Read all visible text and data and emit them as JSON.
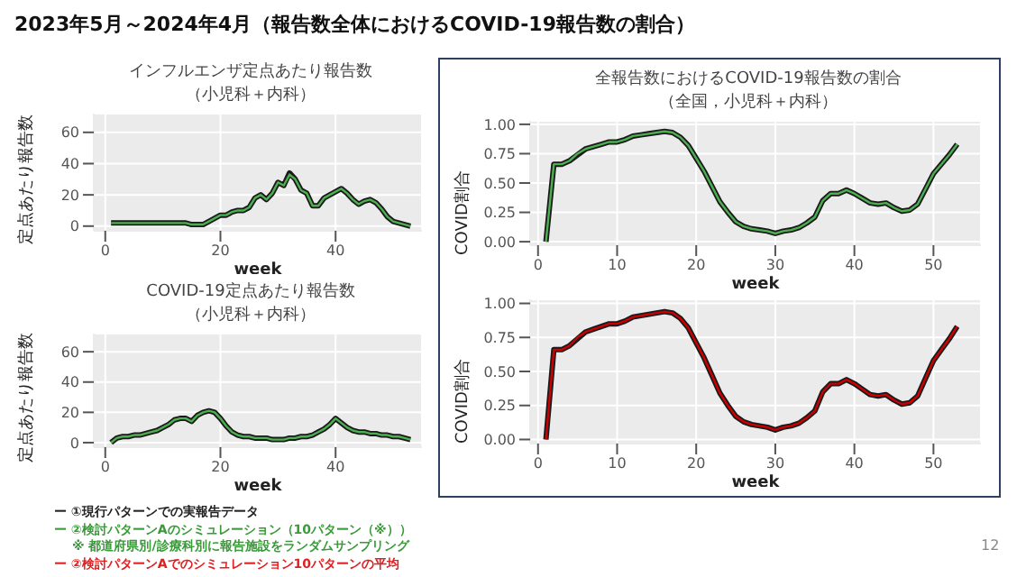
{
  "chart_data": [
    {
      "type": "line",
      "title": "インフルエンザ定点あたり報告数",
      "subtitle": "（小児科＋内科）",
      "xlabel": "week",
      "ylabel": "定点あたり報告数",
      "annotations": [
        "2023年5月～2024年4月（報告数全体におけるCOVID-19報告数の割合）",
        "ー ①現行パターンでの実報告データ",
        "ー ②検討パターンAのシミュレーション（10パターン（※））",
        "※ 都道府県別/診療科別に報告施設をランダムサンプリング",
        "ー ②検討パターンAでのシミュレーション10パターンの平均",
        "12"
      ],
      "x": [
        1,
        2,
        3,
        4,
        5,
        6,
        7,
        8,
        9,
        10,
        11,
        12,
        13,
        14,
        15,
        16,
        17,
        18,
        19,
        20,
        21,
        22,
        23,
        24,
        25,
        26,
        27,
        28,
        29,
        30,
        31,
        32,
        33,
        34,
        35,
        36,
        37,
        38,
        39,
        40,
        41,
        42,
        43,
        44,
        45,
        46,
        47,
        48,
        49,
        50,
        51,
        52,
        53
      ],
      "xlim": [
        -2,
        55
      ],
      "xticks": [
        0,
        20,
        40
      ],
      "ylim": [
        -3,
        72
      ],
      "yticks": [
        0,
        20,
        40,
        60
      ],
      "grid": true,
      "series": [
        {
          "color": "#1a1a1a",
          "values": [
            2,
            2,
            2,
            2,
            2,
            2,
            2,
            2,
            2,
            2,
            2,
            2,
            2,
            2,
            1,
            1,
            1,
            3,
            5,
            7,
            7,
            9,
            10,
            10,
            12,
            18,
            20,
            17,
            21,
            28,
            26,
            34,
            30,
            23,
            21,
            13,
            13,
            18,
            20,
            22,
            24,
            21,
            17,
            14,
            16,
            17,
            15,
            11,
            6,
            3,
            2,
            1,
            0
          ]
        },
        {
          "color": "#4caf50",
          "values": [
            2,
            2,
            2,
            2,
            2,
            2,
            2,
            2,
            2,
            2,
            2,
            2,
            2,
            2,
            1,
            1,
            1,
            3,
            5,
            7,
            7,
            9,
            10,
            10,
            12,
            18,
            20,
            17,
            21,
            28,
            26,
            33,
            30,
            23,
            21,
            13,
            13,
            18,
            20,
            22,
            24,
            21,
            17,
            14,
            16,
            17,
            15,
            11,
            6,
            3,
            2,
            1,
            0
          ]
        }
      ]
    },
    {
      "type": "line",
      "title": "COVID-19定点あたり報告数",
      "subtitle": "（小児科＋内科）",
      "xlabel": "week",
      "ylabel": "定点あたり報告数",
      "x": [
        1,
        2,
        3,
        4,
        5,
        6,
        7,
        8,
        9,
        10,
        11,
        12,
        13,
        14,
        15,
        16,
        17,
        18,
        19,
        20,
        21,
        22,
        23,
        24,
        25,
        26,
        27,
        28,
        29,
        30,
        31,
        32,
        33,
        34,
        35,
        36,
        37,
        38,
        39,
        40,
        41,
        42,
        43,
        44,
        45,
        46,
        47,
        48,
        49,
        50,
        51,
        52,
        53
      ],
      "xlim": [
        -2,
        55
      ],
      "xticks": [
        0,
        20,
        40
      ],
      "ylim": [
        -3,
        72
      ],
      "yticks": [
        0,
        20,
        40,
        60
      ],
      "grid": true,
      "series": [
        {
          "color": "#1a1a1a",
          "values": [
            0,
            3,
            4,
            4,
            5,
            5,
            6,
            7,
            8,
            10,
            12,
            15,
            16,
            16,
            14,
            18,
            20,
            21,
            20,
            16,
            11,
            7,
            5,
            4,
            4,
            3,
            3,
            3,
            2,
            2,
            2,
            3,
            3,
            4,
            4,
            5,
            7,
            9,
            12,
            16,
            13,
            10,
            8,
            7,
            7,
            6,
            6,
            5,
            5,
            4,
            4,
            3,
            2
          ]
        },
        {
          "color": "#4caf50",
          "values": [
            0,
            3,
            4,
            4,
            5,
            5,
            6,
            7,
            8,
            10,
            12,
            15,
            16,
            16,
            14,
            18,
            20,
            21,
            20,
            16,
            11,
            7,
            5,
            4,
            4,
            3,
            3,
            3,
            2,
            2,
            2,
            3,
            3,
            4,
            4,
            5,
            7,
            9,
            12,
            16,
            13,
            10,
            8,
            7,
            7,
            6,
            6,
            5,
            5,
            4,
            4,
            3,
            2
          ]
        }
      ]
    },
    {
      "type": "line",
      "title": "全報告数におけるCOVID-19報告数の割合",
      "subtitle": "（全国，小児科＋内科）",
      "xlabel": "week",
      "ylabel": "COVID割合",
      "x": [
        1,
        2,
        3,
        4,
        5,
        6,
        7,
        8,
        9,
        10,
        11,
        12,
        13,
        14,
        15,
        16,
        17,
        18,
        19,
        20,
        21,
        22,
        23,
        24,
        25,
        26,
        27,
        28,
        29,
        30,
        31,
        32,
        33,
        34,
        35,
        36,
        37,
        38,
        39,
        40,
        41,
        42,
        43,
        44,
        45,
        46,
        47,
        48,
        49,
        50,
        51,
        52,
        53
      ],
      "xlim": [
        -1,
        56
      ],
      "xticks": [
        0,
        10,
        20,
        30,
        40,
        50
      ],
      "ylim": [
        -0.03,
        1.03
      ],
      "yticks": [
        {
          "value": 0,
          "label": "0.00"
        },
        {
          "value": 0.25,
          "label": "0.25"
        },
        {
          "value": 0.5,
          "label": "0.50"
        },
        {
          "value": 0.75,
          "label": "0.75"
        },
        {
          "value": 1,
          "label": "1.00"
        }
      ],
      "grid": true,
      "series": [
        {
          "color": "#1a1a1a",
          "values": [
            0,
            0.66,
            0.66,
            0.69,
            0.74,
            0.79,
            0.81,
            0.83,
            0.85,
            0.85,
            0.87,
            0.9,
            0.91,
            0.92,
            0.93,
            0.94,
            0.93,
            0.89,
            0.82,
            0.71,
            0.6,
            0.47,
            0.34,
            0.25,
            0.17,
            0.13,
            0.11,
            0.1,
            0.09,
            0.07,
            0.09,
            0.1,
            0.12,
            0.16,
            0.21,
            0.35,
            0.41,
            0.41,
            0.44,
            0.41,
            0.37,
            0.33,
            0.32,
            0.33,
            0.29,
            0.26,
            0.27,
            0.32,
            0.45,
            0.58,
            0.66,
            0.74,
            0.83
          ]
        },
        {
          "color": "#4caf50",
          "values": [
            0,
            0.66,
            0.66,
            0.69,
            0.75,
            0.79,
            0.81,
            0.83,
            0.85,
            0.85,
            0.87,
            0.9,
            0.91,
            0.92,
            0.93,
            0.94,
            0.93,
            0.89,
            0.82,
            0.71,
            0.6,
            0.47,
            0.34,
            0.25,
            0.17,
            0.13,
            0.11,
            0.1,
            0.09,
            0.07,
            0.09,
            0.1,
            0.12,
            0.16,
            0.21,
            0.35,
            0.41,
            0.41,
            0.44,
            0.41,
            0.37,
            0.33,
            0.32,
            0.33,
            0.29,
            0.26,
            0.27,
            0.32,
            0.45,
            0.58,
            0.66,
            0.74,
            0.83
          ]
        }
      ]
    },
    {
      "type": "line",
      "xlabel": "week",
      "ylabel": "COVID割合",
      "x": [
        1,
        2,
        3,
        4,
        5,
        6,
        7,
        8,
        9,
        10,
        11,
        12,
        13,
        14,
        15,
        16,
        17,
        18,
        19,
        20,
        21,
        22,
        23,
        24,
        25,
        26,
        27,
        28,
        29,
        30,
        31,
        32,
        33,
        34,
        35,
        36,
        37,
        38,
        39,
        40,
        41,
        42,
        43,
        44,
        45,
        46,
        47,
        48,
        49,
        50,
        51,
        52,
        53
      ],
      "xlim": [
        -1,
        56
      ],
      "xticks": [
        0,
        10,
        20,
        30,
        40,
        50
      ],
      "ylim": [
        -0.03,
        1.03
      ],
      "yticks": [
        {
          "value": 0,
          "label": "0.00"
        },
        {
          "value": 0.25,
          "label": "0.25"
        },
        {
          "value": 0.5,
          "label": "0.50"
        },
        {
          "value": 0.75,
          "label": "0.75"
        },
        {
          "value": 1,
          "label": "1.00"
        }
      ],
      "grid": true,
      "series": [
        {
          "color": "#1a1a1a",
          "values": [
            0,
            0.66,
            0.66,
            0.69,
            0.74,
            0.79,
            0.81,
            0.83,
            0.85,
            0.85,
            0.87,
            0.9,
            0.91,
            0.92,
            0.93,
            0.94,
            0.93,
            0.89,
            0.82,
            0.71,
            0.6,
            0.47,
            0.34,
            0.25,
            0.17,
            0.13,
            0.11,
            0.1,
            0.09,
            0.07,
            0.09,
            0.1,
            0.12,
            0.16,
            0.21,
            0.35,
            0.41,
            0.41,
            0.44,
            0.41,
            0.37,
            0.33,
            0.32,
            0.33,
            0.29,
            0.26,
            0.27,
            0.32,
            0.45,
            0.58,
            0.66,
            0.74,
            0.83
          ]
        },
        {
          "color": "#cc0000",
          "values": [
            0,
            0.66,
            0.66,
            0.69,
            0.75,
            0.79,
            0.81,
            0.83,
            0.85,
            0.85,
            0.87,
            0.9,
            0.91,
            0.92,
            0.93,
            0.94,
            0.93,
            0.89,
            0.82,
            0.71,
            0.6,
            0.47,
            0.34,
            0.25,
            0.17,
            0.13,
            0.11,
            0.1,
            0.09,
            0.07,
            0.09,
            0.1,
            0.12,
            0.16,
            0.21,
            0.35,
            0.41,
            0.41,
            0.44,
            0.41,
            0.37,
            0.33,
            0.32,
            0.33,
            0.29,
            0.26,
            0.27,
            0.32,
            0.45,
            0.58,
            0.66,
            0.74,
            0.83
          ]
        }
      ]
    }
  ]
}
